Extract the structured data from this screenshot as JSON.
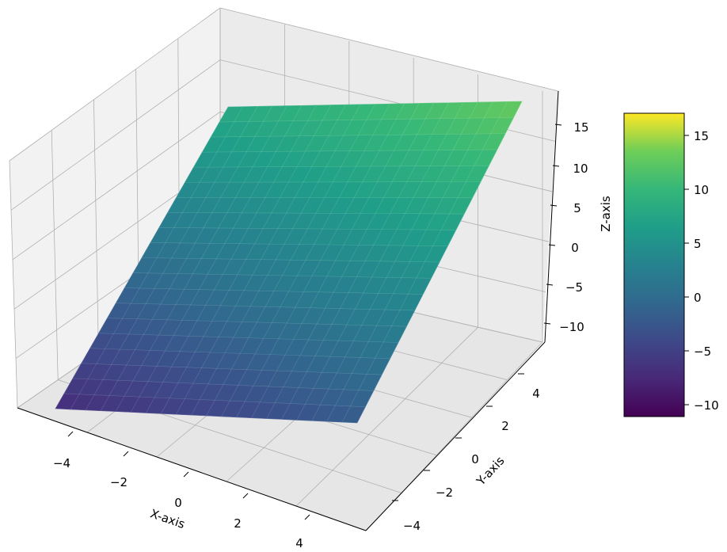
{
  "chart_data": {
    "type": "surface-3d",
    "title": "",
    "xlabel": "X-axis",
    "ylabel": "Y-axis",
    "zlabel": "Z-axis",
    "xlim": [
      -5,
      5
    ],
    "ylim": [
      -5,
      5
    ],
    "zlim": [
      -12,
      17
    ],
    "xticks": [
      "−4",
      "−2",
      "0",
      "2",
      "4"
    ],
    "yticks": [
      "−4",
      "−2",
      "0",
      "2",
      "4"
    ],
    "zticks": [
      "−10",
      "−5",
      "0",
      "5",
      "10",
      "15"
    ],
    "surface": {
      "formula": "z = 0.5*x + 1.5*y + 3",
      "corners": [
        {
          "x": -5,
          "y": -5,
          "z": -7.0
        },
        {
          "x": 5,
          "y": -5,
          "z": -2.0
        },
        {
          "x": 5,
          "y": 5,
          "z": 13.0
        },
        {
          "x": -5,
          "y": 5,
          "z": 8.0
        }
      ],
      "grid_cells": 20
    },
    "colormap": "viridis",
    "colorbar": {
      "range": [
        -11,
        17
      ],
      "ticks": [
        "15",
        "10",
        "5",
        "0",
        "−5",
        "−10"
      ],
      "tick_values": [
        15,
        10,
        5,
        0,
        -5,
        -10
      ]
    },
    "grid": true
  }
}
